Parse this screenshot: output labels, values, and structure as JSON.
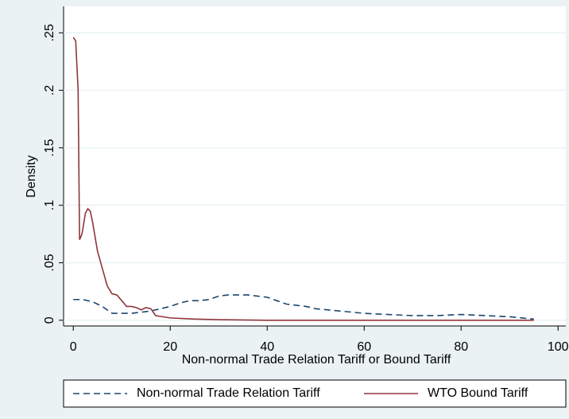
{
  "chart_data": {
    "type": "line",
    "xlabel": "Non-normal Trade Relation Tariff or Bound Tariff",
    "ylabel": "Density",
    "xlim": [
      -2,
      101.6
    ],
    "xticks": [
      0,
      20,
      40,
      60,
      80,
      100
    ],
    "ylim": [
      -0.005,
      0.273
    ],
    "yticks": [
      0,
      {
        "value": 0.05,
        "label": ".05"
      },
      {
        "value": 0.1,
        "label": ".1"
      },
      {
        "value": 0.15,
        "label": ".15"
      },
      {
        "value": 0.2,
        "label": ".2"
      },
      {
        "value": 0.25,
        "label": ".25"
      }
    ],
    "grid": true,
    "legend": "bottom",
    "series": [
      {
        "name": "Non-normal Trade Relation Tariff",
        "color": "#1a476f",
        "dash": "dashed",
        "x": [
          0,
          2,
          4,
          6,
          8,
          10,
          12,
          14,
          16,
          18,
          20,
          22,
          24,
          26,
          28,
          30,
          32,
          34,
          36,
          38,
          40,
          42,
          44,
          46,
          48,
          50,
          55,
          60,
          65,
          70,
          75,
          80,
          85,
          90,
          95
        ],
        "values": [
          0.018,
          0.018,
          0.016,
          0.012,
          0.006,
          0.006,
          0.006,
          0.007,
          0.008,
          0.01,
          0.012,
          0.015,
          0.017,
          0.017,
          0.018,
          0.021,
          0.022,
          0.022,
          0.022,
          0.021,
          0.02,
          0.017,
          0.014,
          0.013,
          0.012,
          0.01,
          0.008,
          0.006,
          0.005,
          0.004,
          0.004,
          0.005,
          0.004,
          0.003,
          0.001
        ]
      },
      {
        "name": "WTO Bound Tariff",
        "color": "#90353b",
        "dash": "solid",
        "x": [
          0,
          0.5,
          1,
          1.3,
          1.8,
          2.5,
          3,
          3.5,
          4,
          5,
          6,
          7,
          8,
          9,
          10,
          11,
          12,
          13,
          14,
          15,
          16,
          17,
          20,
          25,
          30,
          40,
          60,
          80,
          95
        ],
        "values": [
          0.246,
          0.243,
          0.2,
          0.07,
          0.075,
          0.093,
          0.097,
          0.095,
          0.085,
          0.06,
          0.045,
          0.03,
          0.023,
          0.022,
          0.017,
          0.012,
          0.012,
          0.011,
          0.009,
          0.011,
          0.01,
          0.004,
          0.002,
          0.001,
          0.0005,
          0,
          0,
          0,
          0
        ]
      }
    ]
  }
}
